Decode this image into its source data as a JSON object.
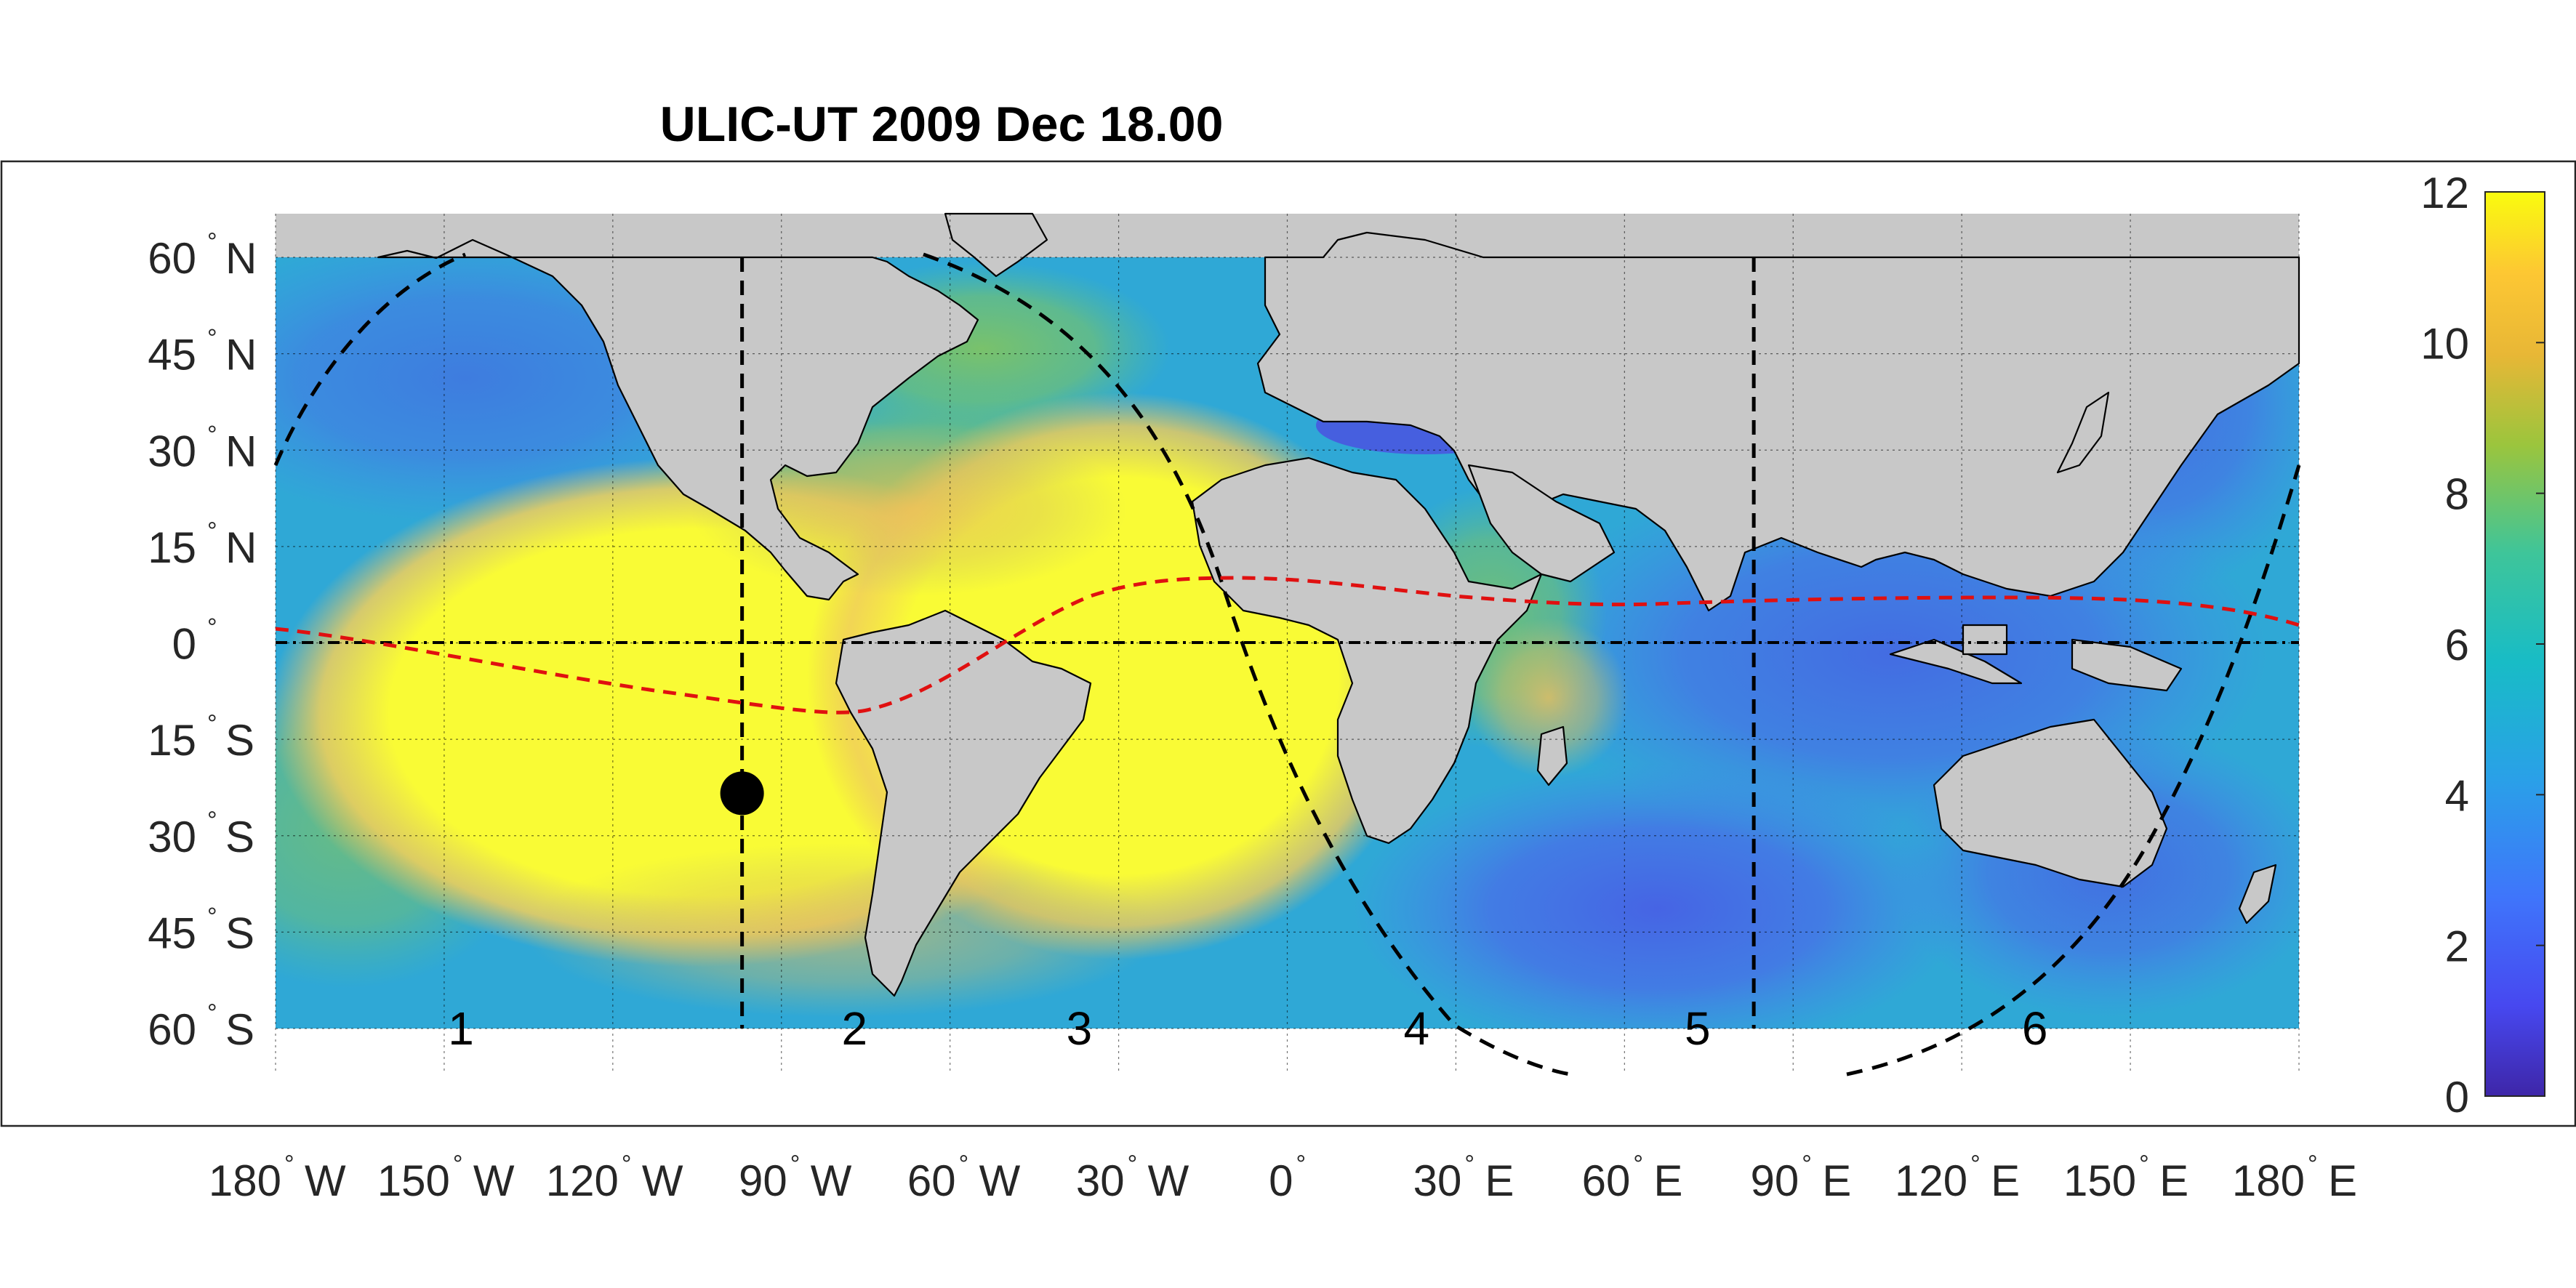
{
  "figure": {
    "title": "ULIC-UT 2009 Dec 18.00"
  },
  "map": {
    "projection": "equirectangular",
    "lon_range": [
      -180,
      180
    ],
    "lat_range": [
      -60,
      60
    ],
    "lat_ticks": [
      {
        "value": 60,
        "deg": "60",
        "hemi": "N"
      },
      {
        "value": 45,
        "deg": "45",
        "hemi": "N"
      },
      {
        "value": 30,
        "deg": "30",
        "hemi": "N"
      },
      {
        "value": 15,
        "deg": "15",
        "hemi": "N"
      },
      {
        "value": 0,
        "deg": "0",
        "hemi": ""
      },
      {
        "value": -15,
        "deg": "15",
        "hemi": "S"
      },
      {
        "value": -30,
        "deg": "30",
        "hemi": "S"
      },
      {
        "value": -45,
        "deg": "45",
        "hemi": "S"
      },
      {
        "value": -60,
        "deg": "60",
        "hemi": "S"
      }
    ],
    "lon_ticks": [
      {
        "value": -180,
        "deg": "180",
        "hemi": "W"
      },
      {
        "value": -150,
        "deg": "150",
        "hemi": "W"
      },
      {
        "value": -120,
        "deg": "120",
        "hemi": "W"
      },
      {
        "value": -90,
        "deg": "90",
        "hemi": "W"
      },
      {
        "value": -60,
        "deg": "60",
        "hemi": "W"
      },
      {
        "value": -30,
        "deg": "30",
        "hemi": "W"
      },
      {
        "value": 0,
        "deg": "0",
        "hemi": ""
      },
      {
        "value": 30,
        "deg": "30",
        "hemi": "E"
      },
      {
        "value": 60,
        "deg": "60",
        "hemi": "E"
      },
      {
        "value": 90,
        "deg": "90",
        "hemi": "E"
      },
      {
        "value": 120,
        "deg": "120",
        "hemi": "E"
      },
      {
        "value": 150,
        "deg": "150",
        "hemi": "E"
      },
      {
        "value": 180,
        "deg": "180",
        "hemi": "E"
      }
    ],
    "sector_labels": [
      {
        "text": "1",
        "lon": -147,
        "lat": -60
      },
      {
        "text": "2",
        "lon": -77,
        "lat": -60
      },
      {
        "text": "3",
        "lon": -37,
        "lat": -60
      },
      {
        "text": "4",
        "lon": 23,
        "lat": -60
      },
      {
        "text": "5",
        "lon": 73,
        "lat": -60
      },
      {
        "text": "6",
        "lon": 133,
        "lat": -60
      }
    ],
    "sector_boundaries_lon": [
      -97,
      83
    ],
    "subsolar_point": {
      "lon": -97,
      "lat": -23.4
    },
    "colors": {
      "land": "#c8c8c8",
      "coast": "#000000",
      "equator_line": "#000000",
      "terminator": "#000000",
      "dip_equator": "#e01010",
      "subsolar": "#000000"
    }
  },
  "colorbar": {
    "min": 0,
    "max": 12,
    "ticks": [
      "12",
      "10",
      "8",
      "6",
      "4",
      "2",
      "0"
    ],
    "colormap": "parula"
  }
}
